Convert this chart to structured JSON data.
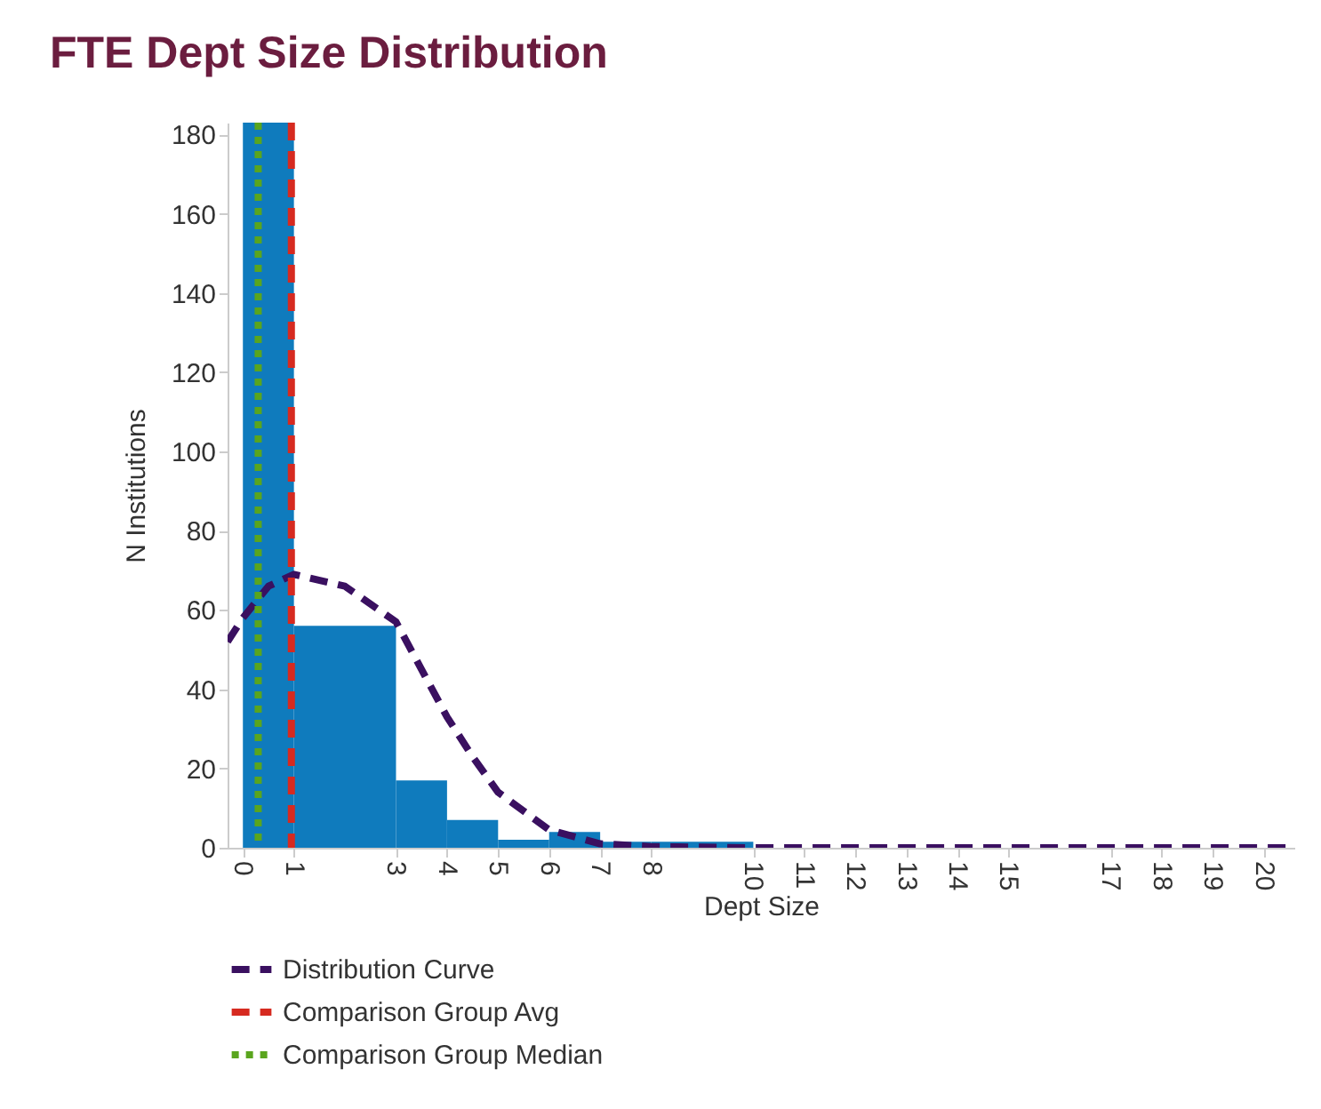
{
  "chart_data": {
    "type": "histogram",
    "title": "FTE Dept Size Distribution",
    "xlabel": "Dept Size",
    "ylabel": "N Institutions",
    "bins": [
      0,
      1,
      3,
      4,
      5,
      6,
      7,
      8,
      10
    ],
    "values": [
      183,
      56,
      17,
      7,
      2,
      4,
      1.5,
      1.5
    ],
    "color": "#0f7bbd",
    "xlim": [
      -0.3,
      20.6
    ],
    "xticks": [
      0,
      1,
      3,
      4,
      5,
      6,
      7,
      8,
      10,
      11,
      12,
      13,
      14,
      15,
      17,
      18,
      19,
      20
    ],
    "ylim": [
      0,
      183
    ],
    "yticks": [
      0,
      20,
      40,
      60,
      80,
      100,
      120,
      140,
      160,
      180
    ],
    "series": [
      {
        "name": "Distribution Curve",
        "type": "line",
        "color": "#3a1060",
        "line_style": "dashed",
        "x": [
          -0.3,
          0,
          0.5,
          1,
          2,
          3,
          3.5,
          4,
          4.5,
          5,
          6,
          7,
          8,
          10,
          20,
          20.6
        ],
        "values": [
          52,
          58,
          66,
          69,
          66,
          57,
          45,
          33,
          23,
          14,
          4.5,
          1,
          0.3,
          0,
          0,
          0
        ]
      }
    ],
    "ref_lines": [
      {
        "axis": "x",
        "value": 0.95,
        "label": "Comparison Group Avg",
        "color": "#d62a20",
        "line_style": "dashed"
      },
      {
        "axis": "x",
        "value": 0.3,
        "label": "Comparison Group Median",
        "color": "#5aa51e",
        "line_style": "dotted"
      }
    ],
    "grid": false,
    "legend": "bottom"
  }
}
